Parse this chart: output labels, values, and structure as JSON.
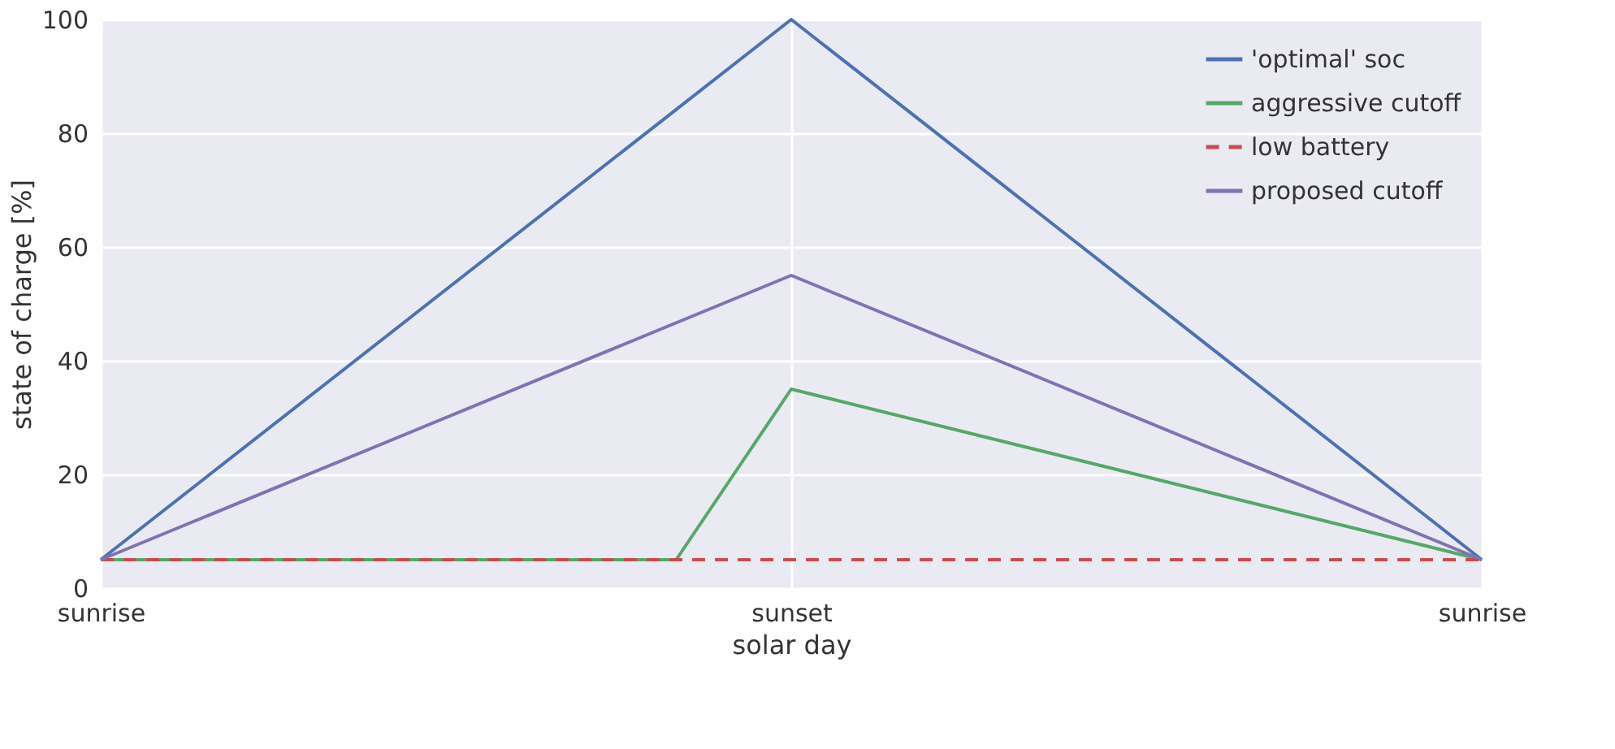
{
  "chart_data": {
    "type": "line",
    "xlabel": "solar day",
    "ylabel": "state of charge [%]",
    "categories": [
      "sunrise",
      null,
      null,
      null,
      null,
      null,
      "sunset",
      null,
      null,
      null,
      null,
      null,
      "sunrise"
    ],
    "ylim": [
      0,
      100
    ],
    "yticks": [
      0,
      20,
      40,
      60,
      80,
      100
    ],
    "grid": true,
    "legend": "top right",
    "marker": "none",
    "series": [
      {
        "name": "'optimal' soc",
        "color": "#4c72b0",
        "values": [
          5,
          null,
          null,
          null,
          null,
          null,
          100,
          null,
          null,
          null,
          null,
          null,
          5
        ]
      },
      {
        "name": "aggressive cutoff",
        "color": "#55a868",
        "values": [
          5,
          null,
          null,
          null,
          null,
          5,
          35,
          null,
          null,
          null,
          null,
          null,
          5
        ]
      },
      {
        "name": "low battery",
        "color": "#c44e52",
        "line_style": "dashed",
        "values": [
          5,
          null,
          null,
          null,
          null,
          null,
          null,
          null,
          null,
          null,
          null,
          null,
          5
        ]
      },
      {
        "name": "proposed cutoff",
        "color": "#8172b2",
        "values": [
          5,
          null,
          null,
          null,
          null,
          null,
          55,
          null,
          null,
          null,
          null,
          null,
          5
        ]
      }
    ]
  }
}
